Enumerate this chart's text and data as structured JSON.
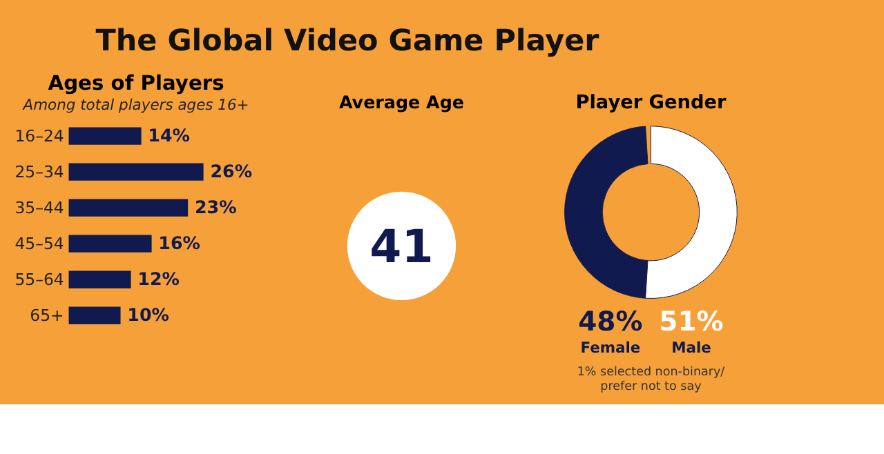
{
  "chart_data": [
    {
      "type": "other",
      "title": "The Global Video Game Player"
    },
    {
      "type": "bar",
      "orientation": "horizontal",
      "title": "Ages of Players",
      "subtitle": "Among total players ages 16+",
      "categories": [
        "16–24",
        "25–34",
        "35–44",
        "45–54",
        "55–64",
        "65+"
      ],
      "values": [
        14,
        26,
        23,
        16,
        12,
        10
      ],
      "color": "#101a4e",
      "value_labels": [
        "14%",
        "26%",
        "23%",
        "16%",
        "12%",
        "10%"
      ],
      "tick_labels": "y"
    },
    {
      "type": "other",
      "title": "Average Age",
      "annotations": [
        "41"
      ]
    },
    {
      "type": "donut",
      "title": "Player Gender",
      "categories": [
        "Female",
        "Male"
      ],
      "values": [
        48,
        51
      ],
      "colors": [
        "#101a4e",
        "#ffffff"
      ],
      "value_labels": [
        "48%",
        "51%"
      ],
      "annotations": [
        "1% selected non-binary/",
        "prefer not to say"
      ]
    }
  ]
}
